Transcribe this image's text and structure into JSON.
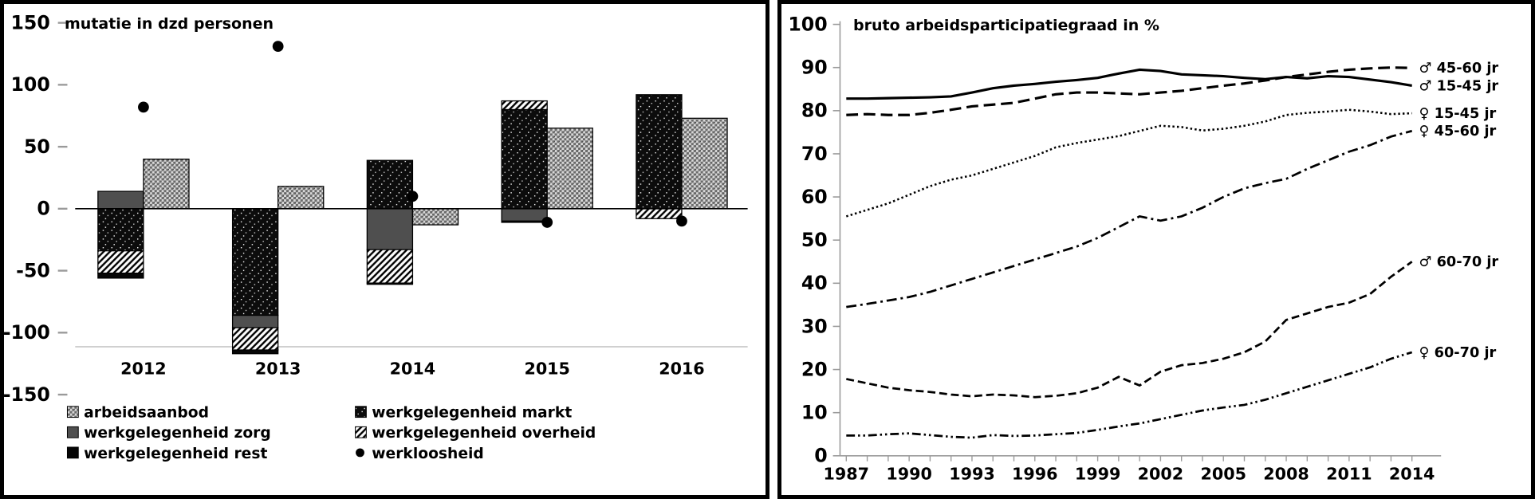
{
  "chart_data": [
    {
      "type": "bar",
      "title": "mutatie in dzd personen",
      "categories": [
        "2012",
        "2013",
        "2014",
        "2015",
        "2016"
      ],
      "ylim": [
        -150,
        150
      ],
      "yticks": [
        150,
        100,
        50,
        0,
        -50,
        -100,
        -150
      ],
      "grid": "off",
      "legend_position": "bottom",
      "series": [
        {
          "name": "werkgelegenheid markt",
          "pattern": "dots_black",
          "values": [
            -34,
            -86,
            39,
            80,
            92
          ]
        },
        {
          "name": "werkgelegenheid zorg",
          "pattern": "grey",
          "values": [
            14,
            -10,
            -33,
            -10,
            0
          ]
        },
        {
          "name": "werkgelegenheid overheid",
          "pattern": "hatch",
          "values": [
            -18,
            -18,
            -27,
            7,
            -8
          ]
        },
        {
          "name": "werkgelegenheid rest",
          "pattern": "black",
          "values": [
            -4,
            -3,
            -1,
            -1,
            0
          ]
        }
      ],
      "side_series": {
        "name": "arbeidsaanbod",
        "pattern": "checker",
        "values": [
          40,
          18,
          -13,
          65,
          73
        ]
      },
      "dot_series": {
        "name": "werkloosheid",
        "marker": "circle",
        "values": [
          82,
          131,
          10,
          -11,
          -10
        ]
      },
      "legend_columns": [
        [
          "arbeidsaanbod",
          "werkgelegenheid zorg",
          "werkgelegenheid rest"
        ],
        [
          "werkgelegenheid markt",
          "werkgelegenheid overheid",
          "werkloosheid"
        ]
      ]
    },
    {
      "type": "line",
      "title": "bruto arbeidsparticipatiegraad in %",
      "x": [
        1987,
        1988,
        1989,
        1990,
        1991,
        1992,
        1993,
        1994,
        1995,
        1996,
        1997,
        1998,
        1999,
        2000,
        2001,
        2002,
        2003,
        2004,
        2005,
        2006,
        2007,
        2008,
        2009,
        2010,
        2011,
        2012,
        2013,
        2014
      ],
      "xticks": [
        1987,
        1990,
        1993,
        1996,
        1999,
        2002,
        2005,
        2008,
        2011,
        2014
      ],
      "ylim": [
        0,
        100
      ],
      "yticks": [
        100,
        90,
        80,
        70,
        60,
        50,
        40,
        30,
        20,
        10,
        0
      ],
      "grid": "off",
      "legend_position": "line-end-labels",
      "series": [
        {
          "name": "♂ 45-60 jr",
          "dash": "dashed",
          "width": 3.2,
          "values": [
            79,
            79.2,
            79,
            79,
            79.5,
            80.2,
            81,
            81.4,
            81.8,
            82.8,
            83.8,
            84.2,
            84.2,
            84,
            83.8,
            84.2,
            84.6,
            85.2,
            85.8,
            86.3,
            87,
            87.8,
            88.4,
            89,
            89.5,
            89.8,
            90,
            89.9
          ]
        },
        {
          "name": "♂ 15-45 jr",
          "dash": "solid",
          "width": 3.2,
          "values": [
            82.8,
            82.8,
            82.9,
            83,
            83.1,
            83.3,
            84.2,
            85.2,
            85.8,
            86.2,
            86.7,
            87.1,
            87.6,
            88.6,
            89.5,
            89.2,
            88.4,
            88.2,
            88,
            87.6,
            87.3,
            87.8,
            87.5,
            88,
            87.8,
            87.2,
            86.6,
            85.8
          ]
        },
        {
          "name": "♀ 15-45 jr",
          "dash": "dotted",
          "width": 2.6,
          "values": [
            55.5,
            57,
            58.5,
            60.5,
            62.5,
            64,
            65,
            66.5,
            68,
            69.5,
            71.5,
            72.5,
            73.3,
            74.1,
            75.3,
            76.5,
            76.2,
            75.4,
            75.8,
            76.5,
            77.5,
            79,
            79.5,
            79.8,
            80.2,
            79.8,
            79.2,
            79.4
          ]
        },
        {
          "name": "♀ 45-60 jr",
          "dash": "dashdot",
          "width": 2.8,
          "values": [
            34.5,
            35.2,
            36,
            36.8,
            38,
            39.5,
            41,
            42.5,
            44,
            45.5,
            47,
            48.5,
            50.5,
            53,
            55.5,
            54.5,
            55.5,
            57.5,
            60,
            62,
            63.2,
            64.2,
            66.5,
            68.5,
            70.5,
            72,
            74,
            75.3
          ]
        },
        {
          "name": "♂ 60-70 jr",
          "dash": "dashed_short",
          "width": 2.8,
          "values": [
            17.8,
            16.8,
            15.8,
            15.2,
            14.8,
            14.2,
            13.8,
            14.2,
            14,
            13.6,
            13.9,
            14.5,
            15.8,
            18.3,
            16.3,
            19.5,
            21,
            21.5,
            22.5,
            24,
            26.5,
            31.5,
            33,
            34.5,
            35.5,
            37.5,
            41.5,
            45
          ]
        },
        {
          "name": "♀ 60-70 jr",
          "dash": "dashdotdot",
          "width": 2.8,
          "values": [
            4.7,
            4.7,
            5,
            5.2,
            4.8,
            4.4,
            4.2,
            4.8,
            4.6,
            4.7,
            5,
            5.3,
            6,
            6.8,
            7.5,
            8.5,
            9.5,
            10.5,
            11.2,
            11.8,
            13,
            14.5,
            16,
            17.5,
            19,
            20.5,
            22.5,
            24
          ]
        }
      ]
    }
  ],
  "colors": {
    "ink": "#000000",
    "grey_fill": "#4f4f4f",
    "axis_grey": "#9a9a9a",
    "background": "#ffffff"
  }
}
